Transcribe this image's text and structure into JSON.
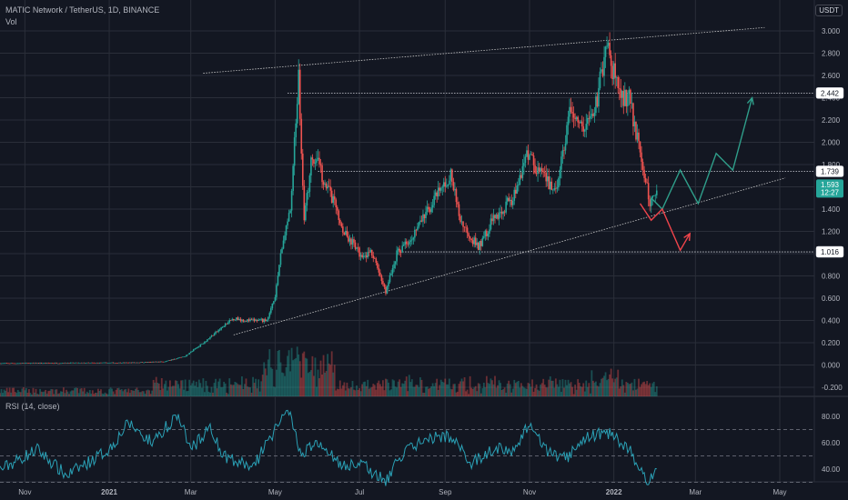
{
  "header": {
    "symbol": "MATIC Network / TetherUS, 1D, BINANCE",
    "vol_label": "Vol"
  },
  "currency_badge": "USDT",
  "rsi_label": "RSI (14, close)",
  "colors": {
    "up": "#26a69a",
    "down": "#ef5350",
    "rsi": "#2aa0b5",
    "grid": "#2a2e39",
    "bg": "#131722",
    "bull_arrow": "#2f9e8a",
    "bear_arrow": "#f0444b"
  },
  "chart_data": {
    "type": "candlestick",
    "price_axis": {
      "ticks": [
        "3.000",
        "2.800",
        "2.600",
        "2.400",
        "2.200",
        "2.000",
        "1.800",
        "1.600",
        "1.400",
        "1.200",
        "1.000",
        "0.800",
        "0.600",
        "0.400",
        "0.200",
        "0.000",
        "-0.200"
      ],
      "ylim": [
        -0.2,
        3.0
      ]
    },
    "time_axis": {
      "ticks": [
        "Nov",
        "2021",
        "Mar",
        "May",
        "Jul",
        "Sep",
        "Nov",
        "2022",
        "Mar",
        "May"
      ]
    },
    "rsi_axis": {
      "ticks": [
        "80.00",
        "60.00",
        "40.00"
      ],
      "levels": [
        70,
        50,
        30
      ]
    },
    "price_labels": [
      {
        "text": "2.442",
        "value": 2.442,
        "style": "neutral"
      },
      {
        "text": "1.739",
        "value": 1.739,
        "style": "neutral"
      },
      {
        "text": "1.016",
        "value": 1.016,
        "style": "neutral"
      },
      {
        "text": "1.593",
        "sub": "12:27",
        "value": 1.593,
        "style": "current"
      }
    ],
    "horizontal_levels": [
      2.442,
      1.739,
      1.016
    ],
    "anchors": [
      [
        "2020-10-15",
        0.015
      ],
      [
        "2020-12-01",
        0.018
      ],
      [
        "2021-01-15",
        0.02
      ],
      [
        "2021-02-10",
        0.03
      ],
      [
        "2021-02-25",
        0.08
      ],
      [
        "2021-03-10",
        0.2
      ],
      [
        "2021-04-01",
        0.42
      ],
      [
        "2021-04-10",
        0.4
      ],
      [
        "2021-04-25",
        0.4
      ],
      [
        "2021-05-01",
        0.6
      ],
      [
        "2021-05-05",
        1.0
      ],
      [
        "2021-05-12",
        1.4
      ],
      [
        "2021-05-18",
        2.6
      ],
      [
        "2021-05-22",
        1.3
      ],
      [
        "2021-05-28",
        1.9
      ],
      [
        "2021-06-08",
        1.6
      ],
      [
        "2021-06-20",
        1.2
      ],
      [
        "2021-07-01",
        1.0
      ],
      [
        "2021-07-10",
        1.0
      ],
      [
        "2021-07-20",
        0.66
      ],
      [
        "2021-07-28",
        1.0
      ],
      [
        "2021-08-10",
        1.2
      ],
      [
        "2021-08-25",
        1.5
      ],
      [
        "2021-09-05",
        1.7
      ],
      [
        "2021-09-12",
        1.3
      ],
      [
        "2021-09-25",
        1.05
      ],
      [
        "2021-10-05",
        1.3
      ],
      [
        "2021-10-20",
        1.5
      ],
      [
        "2021-10-30",
        1.9
      ],
      [
        "2021-11-10",
        1.7
      ],
      [
        "2021-11-20",
        1.55
      ],
      [
        "2021-12-01",
        2.3
      ],
      [
        "2021-12-10",
        2.1
      ],
      [
        "2021-12-20",
        2.4
      ],
      [
        "2021-12-27",
        2.88
      ],
      [
        "2022-01-05",
        2.4
      ],
      [
        "2022-01-12",
        2.4
      ],
      [
        "2022-01-20",
        1.9
      ],
      [
        "2022-01-27",
        1.45
      ],
      [
        "2022-02-01",
        1.593
      ]
    ],
    "rsi_anchors": [
      [
        "2020-10-15",
        40
      ],
      [
        "2020-11-10",
        55
      ],
      [
        "2020-12-01",
        35
      ],
      [
        "2021-01-01",
        55
      ],
      [
        "2021-01-15",
        75
      ],
      [
        "2021-02-01",
        60
      ],
      [
        "2021-02-20",
        82
      ],
      [
        "2021-03-01",
        55
      ],
      [
        "2021-03-15",
        72
      ],
      [
        "2021-03-25",
        50
      ],
      [
        "2021-04-15",
        42
      ],
      [
        "2021-05-01",
        70
      ],
      [
        "2021-05-10",
        85
      ],
      [
        "2021-05-20",
        52
      ],
      [
        "2021-06-01",
        60
      ],
      [
        "2021-06-20",
        42
      ],
      [
        "2021-07-01",
        45
      ],
      [
        "2021-07-20",
        30
      ],
      [
        "2021-08-01",
        52
      ],
      [
        "2021-08-20",
        64
      ],
      [
        "2021-09-05",
        65
      ],
      [
        "2021-09-20",
        44
      ],
      [
        "2021-10-05",
        55
      ],
      [
        "2021-10-20",
        55
      ],
      [
        "2021-11-01",
        73
      ],
      [
        "2021-11-15",
        52
      ],
      [
        "2021-11-28",
        48
      ],
      [
        "2021-12-10",
        64
      ],
      [
        "2021-12-27",
        68
      ],
      [
        "2022-01-10",
        58
      ],
      [
        "2022-01-25",
        32
      ],
      [
        "2022-02-01",
        36
      ]
    ],
    "trendlines": [
      {
        "from": [
          "2021-04-01",
          0.27
        ],
        "to": [
          "2022-05-05",
          1.68
        ],
        "color": "#c8c8c8"
      },
      {
        "from": [
          "2021-03-10",
          2.62
        ],
        "to": [
          "2022-04-20",
          3.03
        ],
        "color": "#c8c8c8"
      }
    ],
    "projections": [
      {
        "type": "bullish",
        "points": [
          [
            "2022-01-28",
            1.5
          ],
          [
            "2022-02-05",
            1.4
          ],
          [
            "2022-02-18",
            1.75
          ],
          [
            "2022-03-03",
            1.45
          ],
          [
            "2022-03-16",
            1.9
          ],
          [
            "2022-03-28",
            1.75
          ],
          [
            "2022-04-11",
            2.4
          ]
        ]
      },
      {
        "type": "bearish",
        "points": [
          [
            "2022-01-20",
            1.45
          ],
          [
            "2022-01-28",
            1.3
          ],
          [
            "2022-02-05",
            1.4
          ],
          [
            "2022-02-18",
            1.03
          ],
          [
            "2022-02-25",
            1.18
          ]
        ]
      }
    ]
  }
}
